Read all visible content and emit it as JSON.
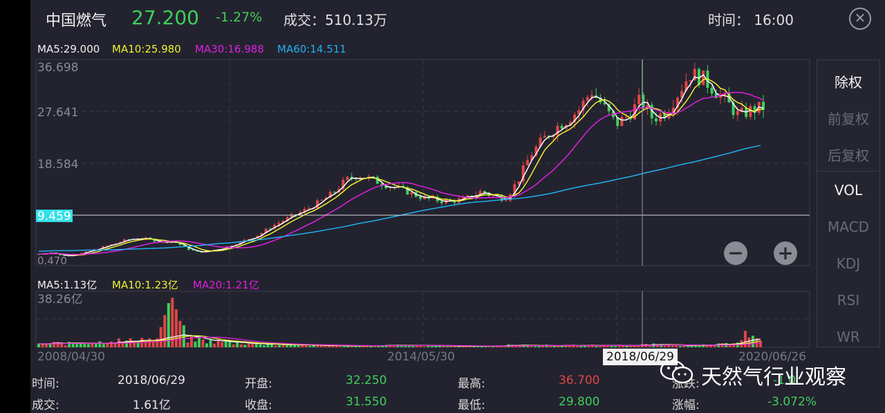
{
  "header": {
    "name": "中国燃气",
    "price": "27.200",
    "change": "-1.27%",
    "volume": "成交：510.13万",
    "time": "时间：  16:00",
    "close_icon": "close-circle-icon"
  },
  "ma": {
    "ma5": "MA5:29.000",
    "ma10": "MA10:25.980",
    "ma30": "MA30:16.988",
    "ma60": "MA60:14.511"
  },
  "price_axis": {
    "top": "36.698",
    "mid1": "27.641",
    "mid2": "18.584",
    "cursor": "9.459",
    "bottom": "0.470"
  },
  "vol_ma": {
    "ma5": "MA5:1.13亿",
    "ma10": "MA10:1.23亿",
    "ma20": "MA20:1.21亿"
  },
  "vol_axis": {
    "top": "38.26亿"
  },
  "dates": {
    "d1": "2008/04/30",
    "d2": "2014/05/30",
    "d3": "2018/06/29",
    "d4": "2020/06/26"
  },
  "side_menu": [
    "除权",
    "前复权",
    "后复权",
    "VOL",
    "MACD",
    "KDJ",
    "RSI",
    "WR"
  ],
  "info": {
    "time_label": "时间:",
    "time_value": "2018/06/29",
    "open_label": "开盘:",
    "open_value": "32.250",
    "high_label": "最高:",
    "high_value": "36.700",
    "chg_label_partial": "涨跌:",
    "chg_value_partial": "-1.0",
    "vol_label": "成交:",
    "vol_value": "1.61亿",
    "close_label": "收盘:",
    "close_value": "31.550",
    "low_label": "最低:",
    "low_value": "29.800",
    "pct_label": "涨幅:",
    "pct_value": "-3.072%"
  },
  "watermark": "天然气行业观察",
  "colors": {
    "up": "#e04646",
    "down": "#3fcf5a",
    "ma5": "#ffffff",
    "ma10": "#f0f032",
    "ma30": "#e020e0",
    "ma60": "#20b0f0"
  },
  "chart_data": {
    "type": "candlestick",
    "y_ticks": [
      36.698,
      27.641,
      18.584,
      9.459,
      0.47
    ],
    "ylim": [
      0.47,
      36.698
    ],
    "x_labels": [
      "2008/04/30",
      "2014/05/30",
      "2018/06/29",
      "2020/06/26"
    ],
    "selected": {
      "date": "2018/06/29",
      "open": 32.25,
      "close": 31.55,
      "high": 36.7,
      "low": 29.8,
      "volume": "1.61亿",
      "pct": "-3.072%"
    },
    "close_path": [
      2.5,
      2.8,
      2.2,
      2.4,
      2.9,
      3.6,
      4.2,
      4.9,
      5.3,
      5.1,
      4.6,
      4.8,
      3.5,
      2.8,
      3.1,
      3.6,
      4.3,
      5.1,
      6.0,
      7.4,
      8.5,
      9.5,
      10.6,
      11.8,
      13.3,
      15.5,
      16.4,
      15.7,
      14.9,
      14.2,
      13.5,
      12.6,
      12.1,
      11.8,
      11.9,
      12.4,
      13.5,
      12.7,
      12.3,
      15.3,
      19.8,
      22.5,
      24.6,
      26.1,
      27.9,
      31.2,
      28.4,
      25.3,
      26.9,
      29.6,
      26.3,
      27.4,
      30.6,
      34.2,
      33.5,
      31.4,
      29.2,
      26.8,
      27.8,
      28.3
    ],
    "ma60_path": [
      3.0,
      3.1,
      3.1,
      3.2,
      3.2,
      3.3,
      3.4,
      3.5,
      3.6,
      3.8,
      4.0,
      4.3,
      4.5,
      4.8,
      5.1,
      5.5,
      5.9,
      6.3,
      6.8,
      7.3,
      7.9,
      8.4,
      9.0,
      9.6,
      10.2,
      10.7,
      11.2,
      11.6,
      11.8,
      12.1,
      12.3,
      12.7,
      13.2,
      13.9,
      14.5,
      15.0,
      15.6,
      16.2,
      16.9,
      17.5,
      18.2,
      18.8,
      19.5,
      20.2,
      21.0,
      21.6
    ],
    "volume_path": [
      0.5,
      0.7,
      0.6,
      0.9,
      0.8,
      1.2,
      1.0,
      1.4,
      1.1,
      9.0,
      1.4,
      1.2,
      1.0,
      0.8,
      0.7,
      0.6,
      0.5,
      0.4,
      0.35,
      0.3,
      0.3,
      0.25,
      0.25,
      0.25,
      0.3,
      0.3,
      0.3,
      0.25,
      0.2,
      0.2,
      0.25,
      0.3,
      0.35,
      0.3,
      0.3,
      0.3,
      0.35,
      0.3,
      0.3,
      0.3,
      0.35,
      0.4,
      0.45,
      0.4,
      0.35,
      0.35,
      0.4,
      0.6,
      2.3,
      0.8
    ]
  }
}
